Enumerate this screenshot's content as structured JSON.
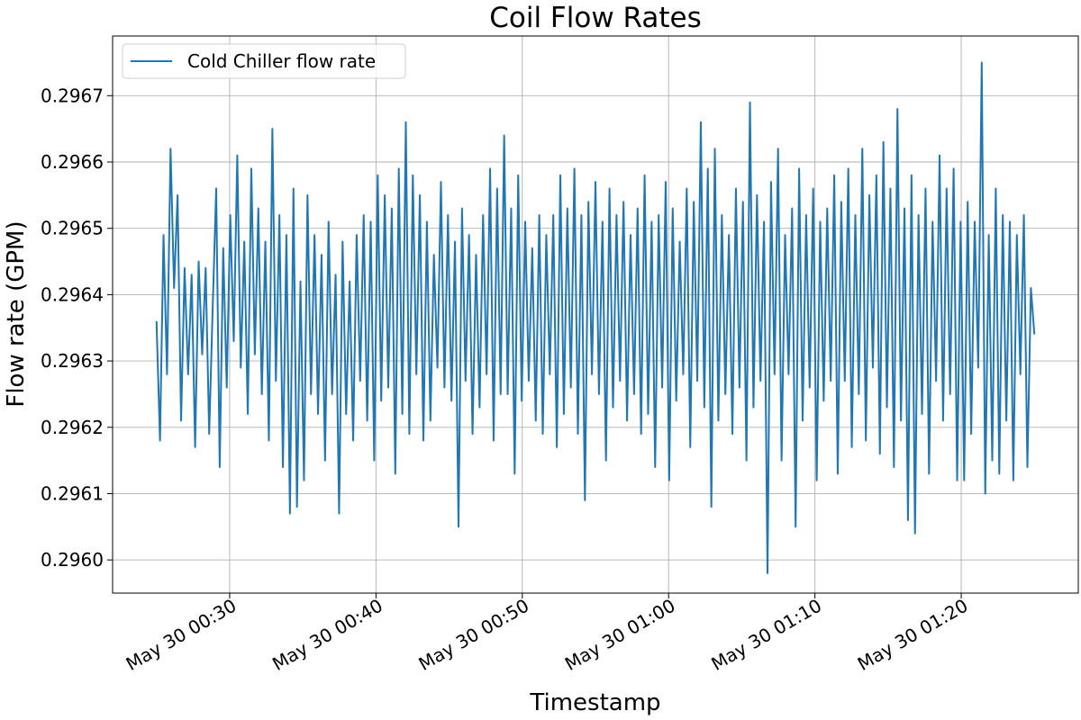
{
  "chart_data": {
    "type": "line",
    "title": "Coil Flow Rates",
    "xlabel": "Timestamp",
    "ylabel": "Flow rate (GPM)",
    "x_start": "2024-05-30T00:25:00",
    "x_end": "2024-05-30T01:25:00",
    "xlim": [
      "2024-05-30T00:22:00",
      "2024-05-30T01:28:00"
    ],
    "ylim": [
      0.29595,
      0.29679
    ],
    "grid": true,
    "legend_position": "top-left",
    "x_ticks": [
      {
        "time": "2024-05-30T00:30:00",
        "label": "May 30 00:30"
      },
      {
        "time": "2024-05-30T00:40:00",
        "label": "May 30 00:40"
      },
      {
        "time": "2024-05-30T00:50:00",
        "label": "May 30 00:50"
      },
      {
        "time": "2024-05-30T01:00:00",
        "label": "May 30 01:00"
      },
      {
        "time": "2024-05-30T01:10:00",
        "label": "May 30 01:10"
      },
      {
        "time": "2024-05-30T01:20:00",
        "label": "May 30 01:20"
      }
    ],
    "y_ticks": [
      {
        "value": 0.296,
        "label": "0.2960"
      },
      {
        "value": 0.2961,
        "label": "0.2961"
      },
      {
        "value": 0.2962,
        "label": "0.2962"
      },
      {
        "value": 0.2963,
        "label": "0.2963"
      },
      {
        "value": 0.2964,
        "label": "0.2964"
      },
      {
        "value": 0.2965,
        "label": "0.2965"
      },
      {
        "value": 0.2966,
        "label": "0.2966"
      },
      {
        "value": 0.2967,
        "label": "0.2967"
      }
    ],
    "series": [
      {
        "name": "Cold Chiller flow rate",
        "color": "#1f77b4",
        "values": [
          0.29636,
          0.29618,
          0.29649,
          0.29628,
          0.29662,
          0.29641,
          0.29655,
          0.29621,
          0.29644,
          0.29628,
          0.29643,
          0.29617,
          0.29645,
          0.29631,
          0.29644,
          0.29619,
          0.29638,
          0.29656,
          0.29614,
          0.29647,
          0.29626,
          0.29652,
          0.29633,
          0.29661,
          0.29629,
          0.29648,
          0.29622,
          0.29659,
          0.29631,
          0.29653,
          0.29625,
          0.29648,
          0.29618,
          0.29665,
          0.29627,
          0.29652,
          0.29614,
          0.29649,
          0.29607,
          0.29656,
          0.29608,
          0.29642,
          0.29612,
          0.29655,
          0.29625,
          0.29649,
          0.29622,
          0.29646,
          0.29615,
          0.29651,
          0.29625,
          0.29643,
          0.29607,
          0.29648,
          0.29622,
          0.29642,
          0.29618,
          0.29649,
          0.29627,
          0.29652,
          0.29621,
          0.29651,
          0.29615,
          0.29658,
          0.29624,
          0.29655,
          0.29626,
          0.29653,
          0.29613,
          0.29659,
          0.29622,
          0.29666,
          0.29619,
          0.29658,
          0.29628,
          0.29655,
          0.29618,
          0.29651,
          0.29621,
          0.29646,
          0.29629,
          0.29657,
          0.29626,
          0.29652,
          0.29624,
          0.29648,
          0.29605,
          0.29653,
          0.29627,
          0.29649,
          0.29619,
          0.29646,
          0.29623,
          0.29652,
          0.29628,
          0.29659,
          0.29618,
          0.29656,
          0.29625,
          0.29664,
          0.29625,
          0.29653,
          0.29613,
          0.29658,
          0.29624,
          0.29651,
          0.29627,
          0.29647,
          0.29621,
          0.29652,
          0.29619,
          0.29649,
          0.29628,
          0.29652,
          0.29617,
          0.29658,
          0.29622,
          0.29653,
          0.29626,
          0.29659,
          0.29619,
          0.29652,
          0.29609,
          0.29654,
          0.29628,
          0.29657,
          0.29625,
          0.29651,
          0.29615,
          0.29656,
          0.29623,
          0.29652,
          0.29627,
          0.29654,
          0.29621,
          0.29649,
          0.29625,
          0.29653,
          0.29619,
          0.29658,
          0.29622,
          0.29651,
          0.29614,
          0.29652,
          0.29626,
          0.29657,
          0.29612,
          0.29653,
          0.29624,
          0.29648,
          0.29628,
          0.29656,
          0.29617,
          0.29654,
          0.29627,
          0.29666,
          0.29623,
          0.29659,
          0.29608,
          0.29662,
          0.29621,
          0.29652,
          0.29625,
          0.29649,
          0.29619,
          0.29656,
          0.29626,
          0.29654,
          0.29615,
          0.29669,
          0.29623,
          0.29655,
          0.29627,
          0.29651,
          0.29598,
          0.29657,
          0.29628,
          0.29662,
          0.29615,
          0.29649,
          0.29628,
          0.29653,
          0.29605,
          0.29659,
          0.29621,
          0.29652,
          0.29626,
          0.29656,
          0.29612,
          0.29651,
          0.29624,
          0.29653,
          0.29627,
          0.29658,
          0.29613,
          0.29654,
          0.29627,
          0.29659,
          0.29617,
          0.29652,
          0.29625,
          0.29662,
          0.29618,
          0.29655,
          0.29629,
          0.29658,
          0.29616,
          0.29663,
          0.29623,
          0.29656,
          0.29614,
          0.29668,
          0.29621,
          0.29653,
          0.29606,
          0.29658,
          0.29604,
          0.29652,
          0.29622,
          0.29656,
          0.29613,
          0.29651,
          0.29627,
          0.29661,
          0.29621,
          0.29656,
          0.29625,
          0.29659,
          0.29612,
          0.29651,
          0.29612,
          0.29654,
          0.29619,
          0.29651,
          0.29629,
          0.29675,
          0.2961,
          0.29649,
          0.29615,
          0.29656,
          0.29613,
          0.29652,
          0.29621,
          0.29651,
          0.29612,
          0.29649,
          0.29628,
          0.29652,
          0.29614,
          0.29641,
          0.29634
        ]
      }
    ]
  }
}
